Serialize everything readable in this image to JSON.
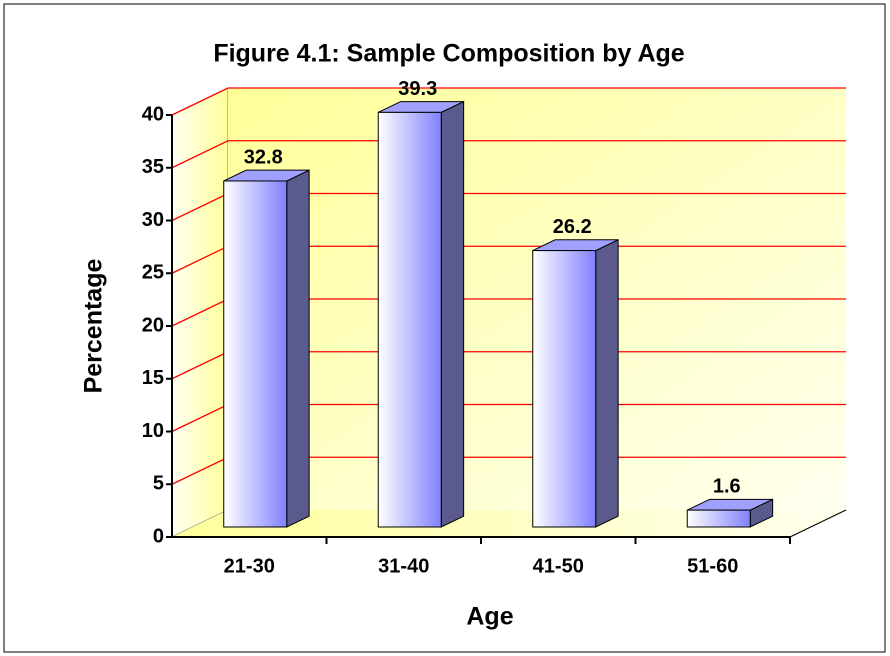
{
  "chart_data": {
    "type": "bar3d",
    "title": "Figure 4.1: Sample Composition by Age",
    "xlabel": "Age",
    "ylabel": "Percentage",
    "categories": [
      "21-30",
      "31-40",
      "41-50",
      "51-60"
    ],
    "values": [
      32.8,
      39.3,
      26.2,
      1.6
    ],
    "color": "#8080ff",
    "grid_color": "#ff0000",
    "ylim": [
      0,
      40
    ],
    "yticks": [
      0,
      5,
      10,
      15,
      20,
      25,
      30,
      35,
      40
    ],
    "grid": true
  }
}
